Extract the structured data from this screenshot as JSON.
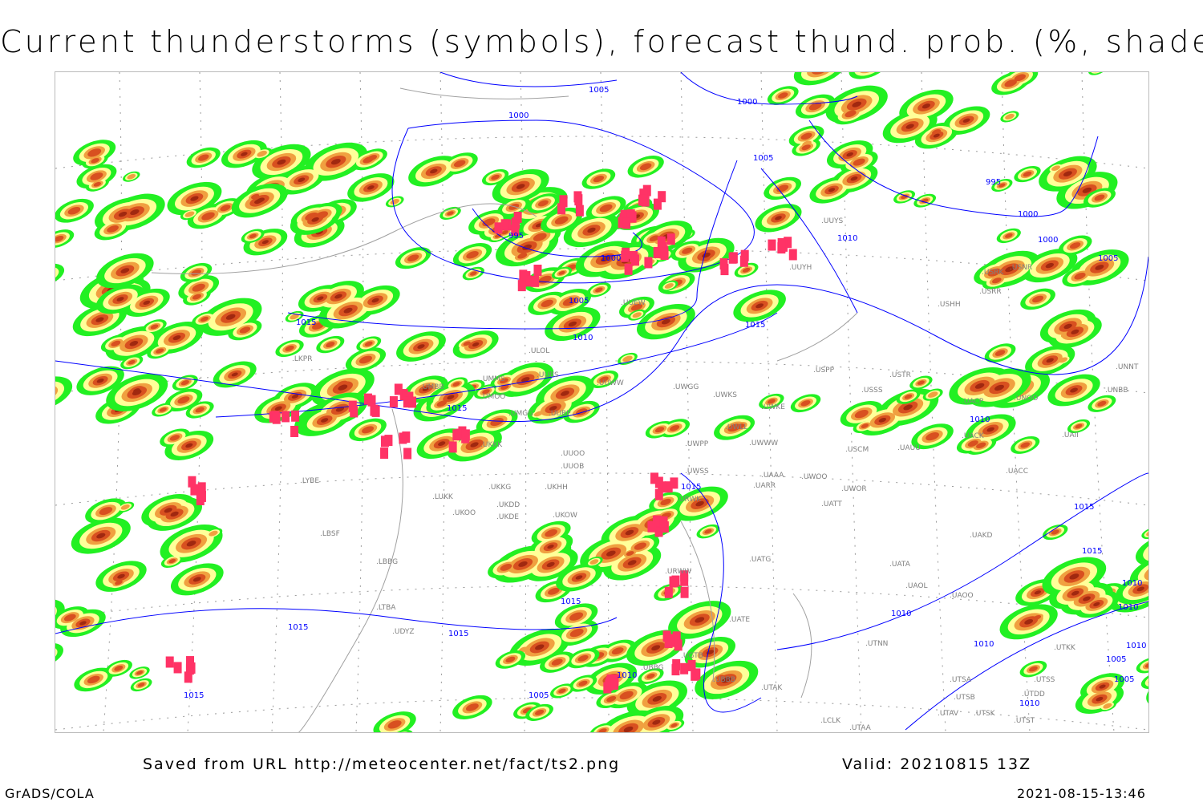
{
  "title": "Current thunderstorms (symbols), forecast thund. prob. (%, shaded)",
  "footer": {
    "source": "Saved from URL http://meteocenter.net/fact/ts2.png",
    "valid": "Valid: 20210815 13Z",
    "software": "GrADS/COLA",
    "timestamp": "2021-08-15-13:46"
  },
  "colors": {
    "prob_low": "#22f022",
    "prob_mid": "#ffff99",
    "prob_high": "#f0a040",
    "prob_very_high": "#d85020",
    "prob_max": "#a02810",
    "thunderstorm_symbol": "#ff3366",
    "isobar": "#0000ff",
    "coastline": "#a0a0a0",
    "station_label": "#808080"
  },
  "isobar_labels": [
    "1005",
    "1000",
    "1000",
    "1005",
    "995",
    "1000",
    "1005",
    "1010",
    "1015",
    "1015",
    "1010",
    "995",
    "1000",
    "1000",
    "1005",
    "1010",
    "1015",
    "1015",
    "1015",
    "1015",
    "1015",
    "1015",
    "1010",
    "1010",
    "1005",
    "1010",
    "1005",
    "1010",
    "1015",
    "1015",
    "1010",
    "1010",
    "1005",
    "1010"
  ],
  "stations": [
    "ULOL",
    "UUEW",
    "UMMS",
    "UUBS",
    "UMOO",
    "UUWW",
    "UWGG",
    "UWKS",
    "UMGG",
    "UUBP",
    "UWKE",
    "UWLL",
    "UWWW",
    "UWPP",
    "UKKK",
    "UUOO",
    "UUOB",
    "UWSS",
    "UKKG",
    "UKHH",
    "UKDD",
    "UKDE",
    "UKOW",
    "URWW",
    "UARR",
    "UAAA",
    "URWK",
    "LKPR",
    "UMBB",
    "LYBE",
    "LUKK",
    "UKOO",
    "LBSF",
    "LBBG",
    "LTBA",
    "UBBB",
    "UTAK",
    "UTAA",
    "UUYS",
    "UUYH",
    "USRK",
    "USNR",
    "USRR",
    "USHH",
    "USPP",
    "USTR",
    "USSS",
    "UACP",
    "UNOO",
    "UNNT",
    "UNBB",
    "UACK",
    "UAUU",
    "USCM",
    "UAII",
    "UACC",
    "UWOO",
    "UWOR",
    "UATT",
    "UAKD",
    "UATG",
    "UATA",
    "UAOL",
    "UAOO",
    "UATE",
    "UTNN",
    "UTSA",
    "UTSS",
    "UTSB",
    "UTAV",
    "UTSK",
    "UTKK",
    "UTST",
    "UTDD",
    "LCLK",
    "UBBG",
    "UGTB",
    "UDYZ"
  ]
}
